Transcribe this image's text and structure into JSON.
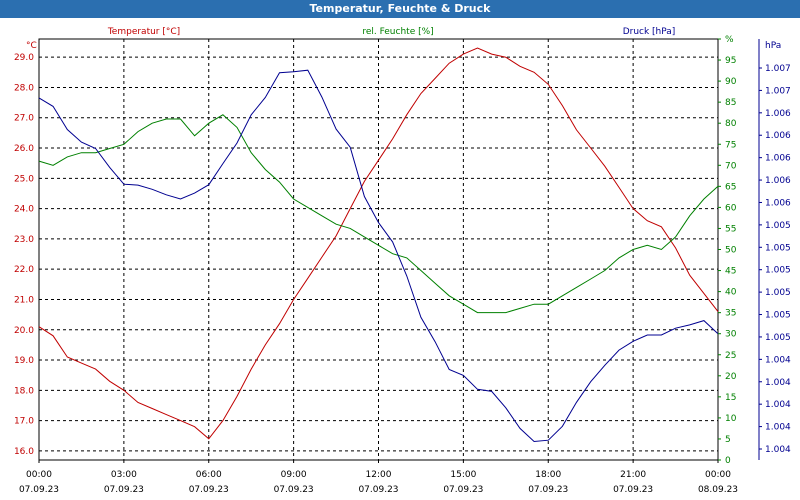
{
  "window": {
    "title": "Temperatur, Feuchte & Druck"
  },
  "chart_data": {
    "type": "line",
    "title": "Temperatur, Feuchte & Druck",
    "grid": true,
    "x": {
      "range_hours": [
        0,
        24
      ],
      "ticks": [
        {
          "time": "00:00",
          "date": "07.09.23"
        },
        {
          "time": "03:00",
          "date": "07.09.23"
        },
        {
          "time": "06:00",
          "date": "07.09.23"
        },
        {
          "time": "09:00",
          "date": "07.09.23"
        },
        {
          "time": "12:00",
          "date": "07.09.23"
        },
        {
          "time": "15:00",
          "date": "07.09.23"
        },
        {
          "time": "18:00",
          "date": "07.09.23"
        },
        {
          "time": "21:00",
          "date": "07.09.23"
        },
        {
          "time": "00:00",
          "date": "08.09.23"
        }
      ]
    },
    "axes": {
      "temperature": {
        "unit": "°C",
        "label": "Temperatur [°C]",
        "color": "#c00000",
        "range": [
          15.7,
          29.6
        ],
        "ticks": [
          "16.0",
          "17.0",
          "18.0",
          "19.0",
          "20.0",
          "21.0",
          "22.0",
          "23.0",
          "24.0",
          "25.0",
          "26.0",
          "27.0",
          "28.0",
          "29.0"
        ]
      },
      "humidity": {
        "unit": "%",
        "label": "rel. Feuchte [%]",
        "color": "#008000",
        "range": [
          0,
          100
        ],
        "ticks": [
          "0",
          "5",
          "10",
          "15",
          "20",
          "25",
          "30",
          "35",
          "40",
          "45",
          "50",
          "55",
          "60",
          "65",
          "70",
          "75",
          "80",
          "85",
          "90",
          "95",
          "%"
        ]
      },
      "pressure": {
        "unit": "hPa",
        "label": "Druck [hPa]",
        "color": "#000090",
        "ticks": [
          "1.004",
          "1.004",
          "1.004",
          "1.004",
          "1.004",
          "1.005",
          "1.005",
          "1.005",
          "1.005",
          "1.005",
          "1.005",
          "1.006",
          "1.006",
          "1.006",
          "1.006",
          "1.006",
          "1.007",
          "1.007"
        ]
      }
    },
    "series": [
      {
        "name": "Temperatur [°C]",
        "axis": "temperature",
        "color": "#c00000",
        "points": [
          [
            0,
            20.1
          ],
          [
            0.5,
            19.8
          ],
          [
            1,
            19.1
          ],
          [
            1.5,
            18.9
          ],
          [
            2,
            18.7
          ],
          [
            2.5,
            18.3
          ],
          [
            3,
            18.0
          ],
          [
            3.5,
            17.6
          ],
          [
            4,
            17.4
          ],
          [
            4.5,
            17.2
          ],
          [
            5,
            17.0
          ],
          [
            5.5,
            16.8
          ],
          [
            6,
            16.4
          ],
          [
            6.5,
            17.0
          ],
          [
            7,
            17.8
          ],
          [
            7.5,
            18.7
          ],
          [
            8,
            19.5
          ],
          [
            8.5,
            20.2
          ],
          [
            9,
            21.0
          ],
          [
            9.5,
            21.7
          ],
          [
            10,
            22.4
          ],
          [
            10.5,
            23.1
          ],
          [
            11,
            24.0
          ],
          [
            11.5,
            24.9
          ],
          [
            12,
            25.6
          ],
          [
            12.5,
            26.3
          ],
          [
            13,
            27.1
          ],
          [
            13.5,
            27.8
          ],
          [
            14,
            28.3
          ],
          [
            14.5,
            28.8
          ],
          [
            15,
            29.1
          ],
          [
            15.5,
            29.3
          ],
          [
            16,
            29.1
          ],
          [
            16.5,
            29.0
          ],
          [
            17,
            28.7
          ],
          [
            17.5,
            28.5
          ],
          [
            18,
            28.1
          ],
          [
            18.5,
            27.4
          ],
          [
            19,
            26.6
          ],
          [
            19.5,
            26.0
          ],
          [
            20,
            25.4
          ],
          [
            20.5,
            24.7
          ],
          [
            21,
            24.0
          ],
          [
            21.5,
            23.6
          ],
          [
            22,
            23.4
          ],
          [
            22.5,
            22.7
          ],
          [
            23,
            21.8
          ],
          [
            23.5,
            21.2
          ],
          [
            24,
            20.6
          ]
        ]
      },
      {
        "name": "rel. Feuchte [%]",
        "axis": "humidity",
        "color": "#008000",
        "points": [
          [
            0,
            71
          ],
          [
            0.5,
            70
          ],
          [
            1,
            72
          ],
          [
            1.5,
            73
          ],
          [
            2,
            73
          ],
          [
            2.5,
            74
          ],
          [
            3,
            75
          ],
          [
            3.5,
            78
          ],
          [
            4,
            80
          ],
          [
            4.5,
            81
          ],
          [
            5,
            81
          ],
          [
            5.5,
            77
          ],
          [
            6,
            80
          ],
          [
            6.5,
            82
          ],
          [
            7,
            79
          ],
          [
            7.5,
            73
          ],
          [
            8,
            69
          ],
          [
            8.5,
            66
          ],
          [
            9,
            62
          ],
          [
            9.5,
            60
          ],
          [
            10,
            58
          ],
          [
            10.5,
            56
          ],
          [
            11,
            55
          ],
          [
            11.5,
            53
          ],
          [
            12,
            51
          ],
          [
            12.5,
            49
          ],
          [
            13,
            48
          ],
          [
            13.5,
            45
          ],
          [
            14,
            42
          ],
          [
            14.5,
            39
          ],
          [
            15,
            37
          ],
          [
            15.5,
            35
          ],
          [
            16,
            35
          ],
          [
            16.5,
            35
          ],
          [
            17,
            36
          ],
          [
            17.5,
            37
          ],
          [
            18,
            37
          ],
          [
            18.5,
            39
          ],
          [
            19,
            41
          ],
          [
            19.5,
            43
          ],
          [
            20,
            45
          ],
          [
            20.5,
            48
          ],
          [
            21,
            50
          ],
          [
            21.5,
            51
          ],
          [
            22,
            50
          ],
          [
            22.5,
            53
          ],
          [
            23,
            58
          ],
          [
            23.5,
            62
          ],
          [
            24,
            65
          ]
        ]
      },
      {
        "name": "Druck [hPa]",
        "axis": "pressure",
        "color": "#000090",
        "points": [
          [
            0,
            86.0
          ],
          [
            0.5,
            84.0
          ],
          [
            1,
            78.5
          ],
          [
            1.5,
            75.5
          ],
          [
            2,
            74.0
          ],
          [
            2.5,
            69.5
          ],
          [
            3,
            65.5
          ],
          [
            3.5,
            65.3
          ],
          [
            4,
            64.3
          ],
          [
            4.5,
            63.0
          ],
          [
            5,
            62.0
          ],
          [
            5.5,
            63.4
          ],
          [
            6,
            65.4
          ],
          [
            6.5,
            70.4
          ],
          [
            7,
            75.3
          ],
          [
            7.5,
            82.0
          ],
          [
            8,
            86.1
          ],
          [
            8.5,
            92.0
          ],
          [
            9,
            92.2
          ],
          [
            9.5,
            92.6
          ],
          [
            10,
            86.2
          ],
          [
            10.5,
            78.6
          ],
          [
            11,
            74.3
          ],
          [
            11.5,
            62.6
          ],
          [
            12,
            56.4
          ],
          [
            12.5,
            51.8
          ],
          [
            13,
            43.7
          ],
          [
            13.5,
            33.9
          ],
          [
            14,
            28.1
          ],
          [
            14.5,
            21.5
          ],
          [
            15,
            20.1
          ],
          [
            15.5,
            16.8
          ],
          [
            16,
            16.3
          ],
          [
            16.5,
            12.4
          ],
          [
            17,
            7.5
          ],
          [
            17.5,
            4.4
          ],
          [
            18,
            4.7
          ],
          [
            18.5,
            8.0
          ],
          [
            19,
            13.7
          ],
          [
            19.5,
            18.6
          ],
          [
            20,
            22.5
          ],
          [
            20.5,
            26.1
          ],
          [
            21,
            28.2
          ],
          [
            21.5,
            29.7
          ],
          [
            22,
            29.7
          ],
          [
            22.5,
            31.3
          ],
          [
            23,
            32.1
          ],
          [
            23.5,
            33.1
          ],
          [
            24,
            30.0
          ]
        ]
      }
    ]
  }
}
